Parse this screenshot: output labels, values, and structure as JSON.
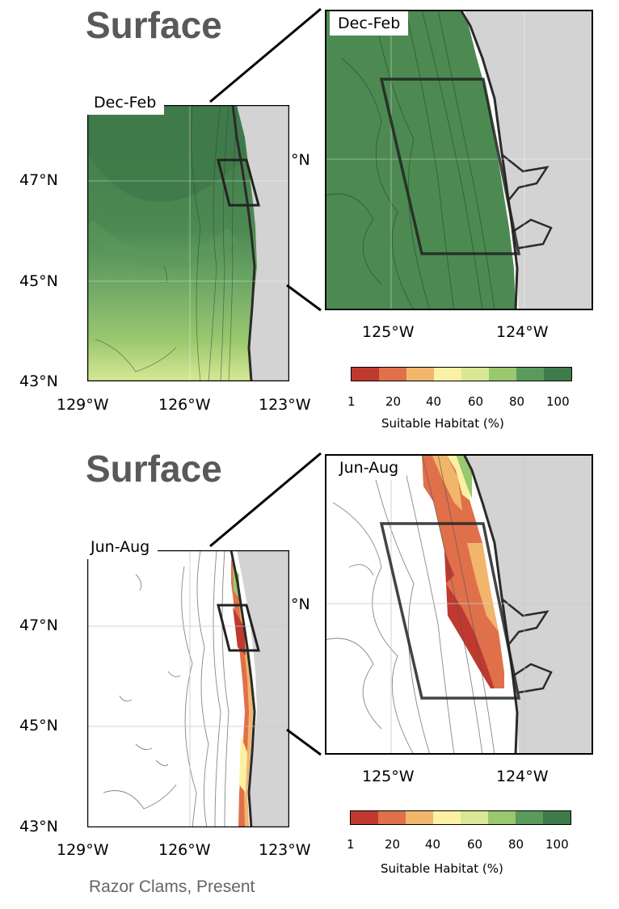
{
  "heading_top": "Surface",
  "heading_bottom": "Surface",
  "caption": "Razor Clams, Present",
  "maps": {
    "winter": {
      "season": "Dec-Feb",
      "inset_season": "Dec-Feb"
    },
    "summer": {
      "season": "Jun-Aug",
      "inset_season": "Jun-Aug"
    }
  },
  "axes": {
    "main_x_ticks": [
      "129°W",
      "126°W",
      "123°W"
    ],
    "main_y_ticks": [
      "47°N",
      "45°N",
      "43°N"
    ],
    "inset_x_ticks": [
      "125°W",
      "124°W"
    ],
    "inset_y_tick": "°N"
  },
  "colorbar": {
    "label": "Suitable Habitat (%)",
    "ticks": [
      "1",
      "20",
      "40",
      "60",
      "80",
      "100"
    ],
    "colors": [
      "#c0392f",
      "#e0704a",
      "#f1b66b",
      "#fcf0a4",
      "#d8e894",
      "#99c86f",
      "#5a9a5c",
      "#3f7a4a"
    ]
  },
  "colors": {
    "land": "#d3d3d3",
    "coastline": "#2a2a2a",
    "contour": "#555555"
  }
}
